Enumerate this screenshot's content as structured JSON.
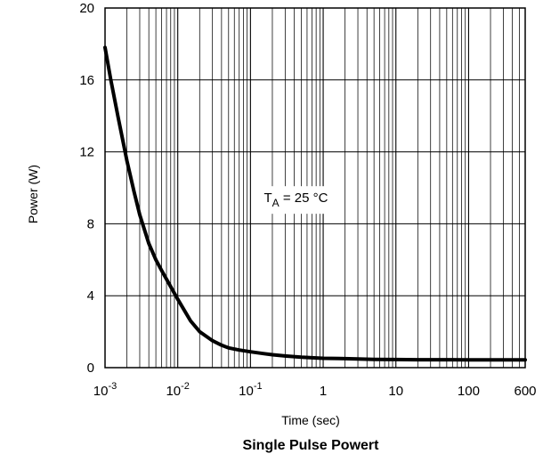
{
  "chart_data": {
    "type": "line",
    "title": "Single Pulse Powert",
    "xlabel": "Time (sec)",
    "ylabel": "Power  (W)",
    "x_scale": "log",
    "xlim": [
      0.001,
      600
    ],
    "ylim": [
      0,
      20
    ],
    "grid": true,
    "x_tick_labels": [
      {
        "value": 0.001,
        "base": "10",
        "exp": "-3"
      },
      {
        "value": 0.01,
        "base": "10",
        "exp": "-2"
      },
      {
        "value": 0.1,
        "base": "10",
        "exp": "-1"
      },
      {
        "value": 1,
        "base": "1",
        "exp": ""
      },
      {
        "value": 10,
        "base": "10",
        "exp": ""
      },
      {
        "value": 100,
        "base": "100",
        "exp": ""
      },
      {
        "value": 600,
        "base": "600",
        "exp": ""
      }
    ],
    "y_ticks": [
      0,
      4,
      8,
      12,
      16,
      20
    ],
    "annotation": {
      "main": "T",
      "sub": "A",
      "rest": " = 25 °C",
      "x": 0.5,
      "y": 9.2
    },
    "series": [
      {
        "color": "#000000",
        "x": [
          0.001,
          0.0012,
          0.0015,
          0.002,
          0.0025,
          0.003,
          0.004,
          0.005,
          0.006,
          0.008,
          0.01,
          0.015,
          0.02,
          0.03,
          0.04,
          0.05,
          0.07,
          0.1,
          0.15,
          0.2,
          0.3,
          0.5,
          0.7,
          1,
          2,
          3,
          5,
          10,
          20,
          50,
          100,
          200,
          600
        ],
        "y": [
          17.8,
          16.0,
          14.0,
          11.5,
          9.8,
          8.5,
          6.9,
          6.0,
          5.4,
          4.5,
          3.8,
          2.6,
          2.0,
          1.5,
          1.25,
          1.1,
          0.98,
          0.88,
          0.78,
          0.72,
          0.65,
          0.58,
          0.55,
          0.52,
          0.5,
          0.48,
          0.46,
          0.45,
          0.44,
          0.44,
          0.43,
          0.43,
          0.43
        ]
      }
    ]
  }
}
